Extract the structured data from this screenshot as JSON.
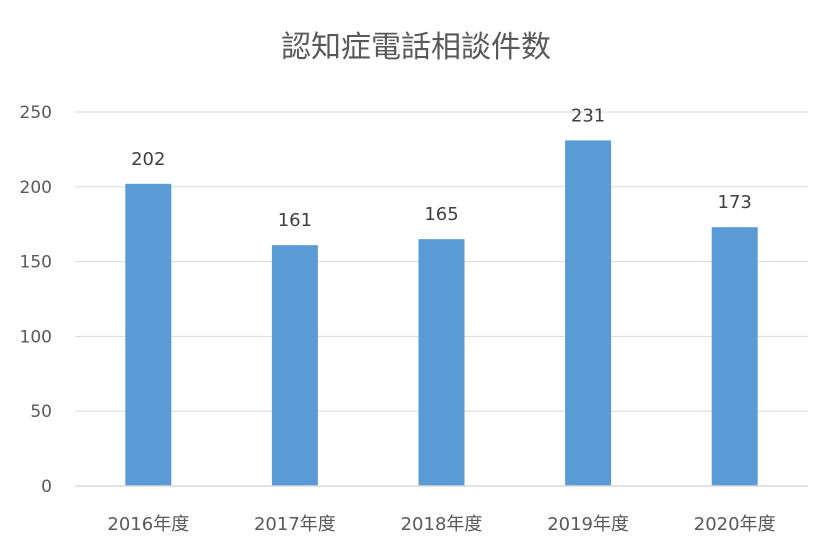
{
  "chart_data": {
    "type": "bar",
    "title": "認知症電話相談件数",
    "categories": [
      "2016年度",
      "2017年度",
      "2018年度",
      "2019年度",
      "2020年度"
    ],
    "values": [
      202,
      161,
      165,
      231,
      173
    ],
    "xlabel": "",
    "ylabel": "",
    "ylim": [
      0,
      250
    ],
    "yticks": [
      0,
      50,
      100,
      150,
      200,
      250
    ],
    "grid": true,
    "legend": "none",
    "colors": {
      "bar": "#5B9BD5",
      "grid": "#D9D9D9",
      "text": "#595959",
      "label": "#404040"
    }
  }
}
